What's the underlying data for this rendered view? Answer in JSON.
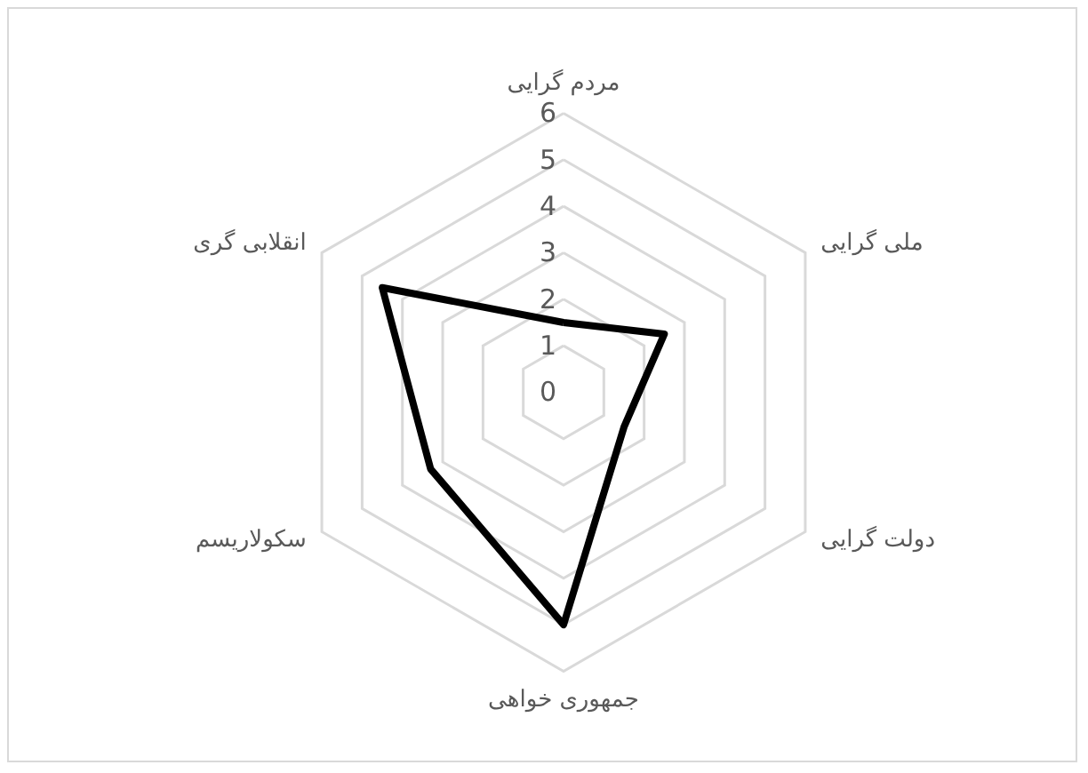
{
  "chart_data": {
    "type": "radar",
    "categories": [
      "مردم گرایی",
      "ملی گرایی",
      "دولت گرایی",
      "جمهوری خواهی",
      "سکولاریسم",
      "انقلابی گری"
    ],
    "series": [
      {
        "color": "#000000",
        "values": [
          1.5,
          2.5,
          1.5,
          5,
          3.3,
          4.5
        ]
      }
    ],
    "ylim": [
      0,
      6
    ],
    "yticks": [
      0,
      1,
      2,
      3,
      4,
      5,
      6
    ]
  }
}
